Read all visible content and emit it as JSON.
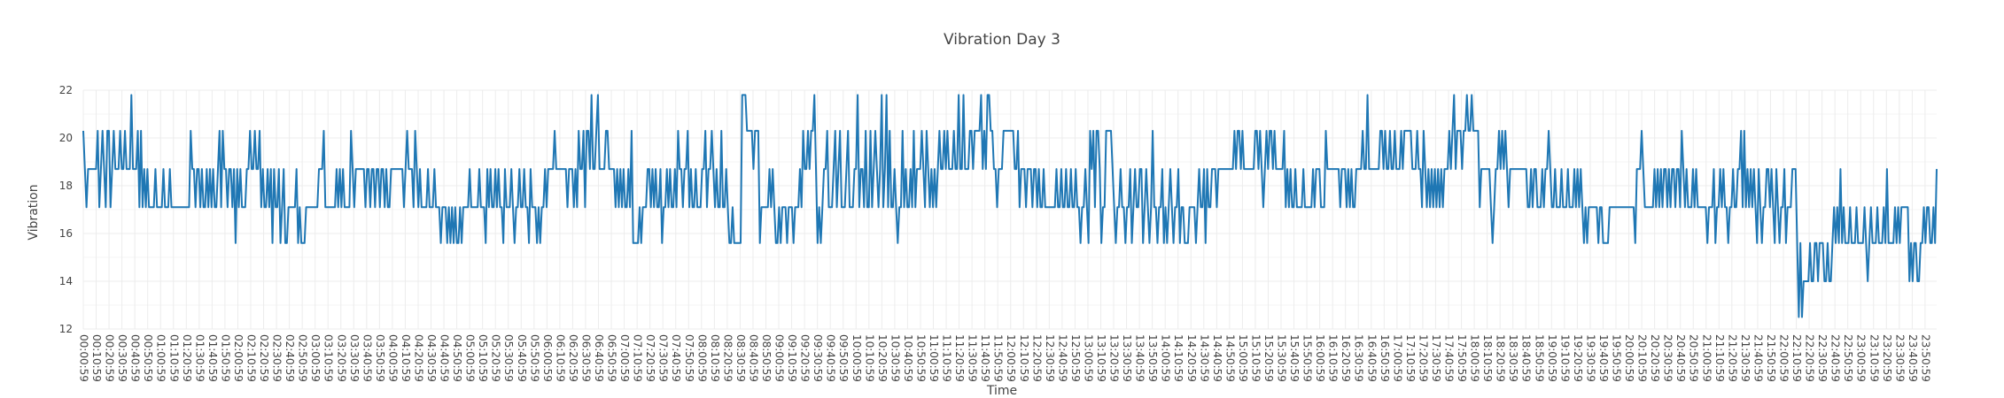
{
  "chart_data": {
    "type": "line",
    "title": "Vibration Day 3",
    "xlabel": "Time",
    "ylabel": "Vibration",
    "ylim": [
      12,
      22
    ],
    "yticks": [
      12,
      14,
      16,
      18,
      20,
      22
    ],
    "grid": true,
    "legend": "none",
    "series": [
      {
        "color": "#1f77b4"
      }
    ],
    "x_start": "00:00:59",
    "x_step_minutes": 1,
    "x_tick_every_minutes": 10,
    "x": [],
    "xtick_labels": [
      "00:00:59",
      "00:10:59",
      "00:20:59",
      "00:30:59",
      "00:40:59",
      "00:50:59",
      "01:00:59",
      "01:10:59",
      "01:20:59",
      "01:30:59",
      "01:40:59",
      "01:50:59",
      "02:00:59",
      "02:10:59",
      "02:20:59",
      "02:30:59",
      "02:40:59",
      "02:50:59",
      "03:00:59",
      "03:10:59",
      "03:20:59",
      "03:30:59",
      "03:40:59",
      "03:50:59",
      "04:00:59",
      "04:10:59",
      "04:20:59",
      "04:30:59",
      "04:40:59",
      "04:50:59",
      "05:00:59",
      "05:10:59",
      "05:20:59",
      "05:30:59",
      "05:40:59",
      "05:50:59",
      "06:00:59",
      "06:10:59",
      "06:20:59",
      "06:30:59",
      "06:40:59",
      "06:50:59",
      "07:00:59",
      "07:10:59",
      "07:20:59",
      "07:30:59",
      "07:40:59",
      "07:50:59",
      "08:00:59",
      "08:10:59",
      "08:20:59",
      "08:30:59",
      "08:40:59",
      "08:50:59",
      "09:00:59",
      "09:10:59",
      "09:20:59",
      "09:30:59",
      "09:40:59",
      "09:50:59",
      "10:00:59",
      "10:10:59",
      "10:20:59",
      "10:30:59",
      "10:40:59",
      "10:50:59",
      "11:00:59",
      "11:10:59",
      "11:20:59",
      "11:30:59",
      "11:40:59",
      "11:50:59",
      "12:00:59",
      "12:10:59",
      "12:20:59",
      "12:30:59",
      "12:40:59",
      "12:50:59",
      "13:00:59",
      "13:10:59",
      "13:20:59",
      "13:30:59",
      "13:40:59",
      "13:50:59",
      "14:00:59",
      "14:10:59",
      "14:20:59",
      "14:30:59",
      "14:40:59",
      "14:50:59",
      "15:00:59",
      "15:10:59",
      "15:20:59",
      "15:30:59",
      "15:40:59",
      "15:50:59",
      "16:00:59",
      "16:10:59",
      "16:20:59",
      "16:30:59",
      "16:40:59",
      "16:50:59",
      "17:00:59",
      "17:10:59",
      "17:20:59",
      "17:30:59",
      "17:40:59",
      "17:50:59",
      "18:00:59",
      "18:10:59",
      "18:20:59",
      "18:30:59",
      "18:40:59",
      "18:50:59",
      "19:00:59",
      "19:10:59",
      "19:20:59",
      "19:30:59",
      "19:40:59",
      "19:50:59",
      "20:00:59",
      "20:10:59",
      "20:20:59",
      "20:30:59",
      "20:40:59",
      "20:50:59",
      "21:00:59",
      "21:10:59",
      "21:20:59",
      "21:30:59",
      "21:40:59",
      "21:50:59",
      "22:00:59",
      "22:10:59",
      "22:20:59",
      "22:30:59",
      "22:40:59",
      "22:50:59",
      "23:00:59",
      "23:10:59",
      "23:20:59",
      "23:30:59",
      "23:40:59",
      "23:50:59"
    ],
    "y": [
      20.3,
      18.7,
      17.1,
      18.7,
      18.7,
      18.7,
      18.7,
      18.7,
      18.7,
      20.3,
      17.1,
      18.7,
      20.3,
      18.7,
      17.1,
      20.3,
      20.3,
      17.1,
      18.7,
      20.3,
      18.7,
      18.7,
      18.7,
      20.3,
      18.7,
      18.7,
      20.3,
      18.7,
      18.7,
      18.7,
      21.8,
      18.7,
      18.7,
      18.7,
      20.3,
      17.1,
      20.3,
      17.1,
      18.7,
      17.1,
      18.7,
      17.1,
      17.1,
      17.1,
      17.1,
      18.7,
      17.1,
      17.1,
      17.1,
      17.1,
      18.7,
      17.1,
      17.1,
      17.1,
      18.7,
      17.1,
      17.1,
      17.1,
      17.1,
      17.1,
      17.1,
      17.1,
      17.1,
      17.1,
      17.1,
      17.1,
      17.1,
      20.3,
      18.7,
      18.7,
      17.1,
      18.7,
      18.7,
      17.1,
      18.7,
      17.1,
      17.1,
      18.7,
      17.1,
      18.7,
      17.1,
      18.7,
      17.1,
      17.1,
      18.7,
      20.3,
      17.1,
      20.3,
      18.7,
      18.7,
      17.1,
      18.7,
      18.7,
      17.1,
      18.7,
      15.6,
      18.7,
      17.1,
      18.7,
      17.1,
      17.1,
      17.1,
      18.7,
      18.7,
      20.3,
      18.7,
      18.7,
      20.3,
      18.7,
      18.7,
      20.3,
      17.1,
      18.7,
      17.1,
      17.1,
      18.7,
      17.1,
      18.7,
      15.6,
      18.7,
      17.1,
      17.1,
      18.7,
      15.6,
      17.1,
      18.7,
      15.6,
      15.6,
      17.1,
      17.1,
      17.1,
      17.1,
      17.1,
      18.7,
      15.6,
      17.1,
      15.6,
      15.6,
      15.6,
      17.1,
      17.1,
      17.1,
      17.1,
      17.1,
      17.1,
      17.1,
      17.1,
      18.7,
      18.7,
      18.7,
      20.3,
      17.1,
      17.1,
      17.1,
      17.1,
      17.1,
      17.1,
      17.1,
      18.7,
      17.1,
      18.7,
      17.1,
      18.7,
      17.1,
      17.1,
      17.1,
      17.1,
      20.3,
      18.7,
      17.1,
      18.7,
      18.7,
      18.7,
      18.7,
      18.7,
      18.7,
      17.1,
      18.7,
      18.7,
      17.1,
      18.7,
      18.7,
      17.1,
      18.7,
      18.7,
      17.1,
      18.7,
      18.7,
      17.1,
      18.7,
      17.1,
      17.1,
      18.7,
      18.7,
      18.7,
      18.7,
      18.7,
      18.7,
      18.7,
      18.7,
      17.1,
      18.7,
      20.3,
      18.7,
      18.7,
      18.7,
      17.1,
      20.3,
      18.7,
      17.1,
      18.7,
      17.1,
      17.1,
      17.1,
      17.1,
      18.7,
      17.1,
      17.1,
      17.1,
      18.7,
      17.1,
      17.1,
      17.1,
      15.6,
      17.1,
      17.1,
      17.1,
      15.6,
      17.1,
      15.6,
      17.1,
      15.6,
      17.1,
      15.6,
      15.6,
      17.1,
      15.6,
      17.1,
      17.1,
      17.1,
      17.1,
      18.7,
      17.1,
      17.1,
      17.1,
      17.1,
      17.1,
      18.7,
      17.1,
      17.1,
      17.1,
      15.6,
      18.7,
      17.1,
      18.7,
      17.1,
      17.1,
      18.7,
      17.1,
      18.7,
      17.1,
      17.1,
      15.6,
      18.7,
      17.1,
      17.1,
      17.1,
      18.7,
      17.1,
      15.6,
      17.1,
      17.1,
      18.7,
      17.1,
      17.1,
      18.7,
      17.1,
      17.1,
      15.6,
      18.7,
      17.1,
      17.1,
      17.1,
      15.6,
      17.1,
      15.6,
      17.1,
      17.1,
      18.7,
      17.1,
      18.7,
      18.7,
      18.7,
      18.7,
      20.3,
      18.7,
      18.7,
      18.7,
      18.7,
      18.7,
      18.7,
      18.7,
      17.1,
      18.7,
      18.7,
      18.7,
      17.1,
      18.7,
      17.1,
      20.3,
      18.7,
      18.7,
      20.3,
      17.1,
      20.3,
      20.3,
      18.7,
      21.8,
      18.7,
      18.7,
      20.3,
      21.8,
      18.7,
      18.7,
      18.7,
      18.7,
      20.3,
      20.3,
      18.7,
      18.7,
      18.7,
      18.7,
      17.1,
      18.7,
      17.1,
      18.7,
      17.1,
      18.7,
      17.1,
      17.1,
      18.7,
      17.1,
      20.3,
      15.6,
      15.6,
      15.6,
      15.6,
      17.1,
      15.6,
      17.1,
      17.1,
      17.1,
      18.7,
      18.7,
      17.1,
      18.7,
      17.1,
      18.7,
      17.1,
      17.1,
      18.7,
      15.6,
      17.1,
      17.1,
      18.7,
      17.1,
      18.7,
      17.1,
      17.1,
      18.7,
      17.1,
      20.3,
      18.7,
      18.7,
      17.1,
      18.7,
      18.7,
      20.3,
      17.1,
      18.7,
      17.1,
      17.1,
      18.7,
      17.1,
      17.1,
      17.1,
      18.7,
      18.7,
      20.3,
      17.1,
      18.7,
      18.7,
      20.3,
      18.7,
      17.1,
      18.7,
      17.1,
      17.1,
      20.3,
      17.1,
      17.1,
      18.7,
      17.1,
      15.6,
      15.6,
      17.1,
      15.6,
      15.6,
      15.6,
      15.6,
      15.6,
      21.8,
      21.8,
      21.8,
      20.3,
      20.3,
      20.3,
      20.3,
      18.7,
      20.3,
      20.3,
      20.3,
      15.6,
      17.1,
      17.1,
      17.1,
      17.1,
      17.1,
      18.7,
      17.1,
      18.7,
      17.1,
      15.6,
      15.6,
      17.1,
      15.6,
      17.1,
      17.1,
      17.1,
      15.6,
      17.1,
      17.1,
      17.1,
      15.6,
      17.1,
      17.1,
      17.1,
      18.7,
      17.1,
      20.3,
      18.7,
      18.7,
      20.3,
      18.7,
      20.3,
      20.3,
      21.8,
      18.7,
      15.6,
      17.1,
      15.6,
      17.1,
      18.7,
      18.7,
      20.3,
      17.1,
      17.1,
      17.1,
      18.7,
      20.3,
      17.1,
      18.7,
      20.3,
      17.1,
      17.1,
      17.1,
      18.7,
      20.3,
      17.1,
      17.1,
      17.1,
      18.7,
      18.7,
      21.8,
      17.1,
      18.7,
      18.7,
      17.1,
      20.3,
      17.1,
      17.1,
      20.3,
      17.1,
      18.7,
      20.3,
      18.7,
      17.1,
      18.7,
      21.8,
      17.1,
      18.7,
      21.8,
      17.1,
      20.3,
      17.1,
      17.1,
      18.7,
      17.1,
      15.6,
      17.1,
      17.1,
      20.3,
      17.1,
      18.7,
      17.1,
      17.1,
      18.7,
      17.1,
      20.3,
      17.1,
      18.7,
      18.7,
      18.7,
      20.3,
      18.7,
      17.1,
      20.3,
      18.7,
      17.1,
      18.7,
      17.1,
      18.7,
      17.1,
      18.7,
      20.3,
      18.7,
      18.7,
      20.3,
      18.7,
      20.3,
      18.7,
      18.7,
      18.7,
      20.3,
      18.7,
      18.7,
      21.8,
      18.7,
      18.7,
      21.8,
      18.7,
      18.7,
      18.7,
      20.3,
      20.3,
      18.7,
      20.3,
      20.3,
      20.3,
      20.3,
      21.8,
      18.7,
      20.3,
      18.7,
      21.8,
      21.8,
      20.3,
      20.3,
      18.7,
      18.7,
      17.1,
      18.7,
      18.7,
      18.7,
      20.3,
      20.3,
      20.3,
      20.3,
      20.3,
      20.3,
      20.3,
      18.7,
      18.7,
      20.3,
      17.1,
      18.7,
      18.7,
      18.7,
      17.1,
      18.7,
      18.7,
      18.7,
      17.1,
      18.7,
      18.7,
      17.1,
      18.7,
      17.1,
      17.1,
      18.7,
      17.1,
      17.1,
      17.1,
      17.1,
      17.1,
      17.1,
      17.1,
      18.7,
      17.1,
      17.1,
      18.7,
      17.1,
      17.1,
      18.7,
      17.1,
      17.1,
      18.7,
      17.1,
      17.1,
      18.7,
      17.1,
      17.1,
      15.6,
      17.1,
      17.1,
      18.7,
      17.1,
      15.6,
      20.3,
      18.7,
      20.3,
      17.1,
      20.3,
      20.3,
      18.7,
      15.6,
      17.1,
      17.1,
      20.3,
      20.3,
      20.3,
      20.3,
      18.7,
      17.1,
      15.6,
      17.1,
      17.1,
      18.7,
      17.1,
      17.1,
      15.6,
      17.1,
      17.1,
      18.7,
      15.6,
      17.1,
      18.7,
      17.1,
      17.1,
      18.7,
      18.7,
      15.6,
      17.1,
      18.7,
      17.1,
      15.6,
      17.1,
      20.3,
      17.1,
      17.1,
      15.6,
      17.1,
      17.1,
      18.7,
      15.6,
      17.1,
      15.6,
      17.1,
      18.7,
      17.1,
      15.6,
      17.1,
      17.1,
      18.7,
      15.6,
      17.1,
      17.1,
      15.6,
      15.6,
      15.6,
      17.1,
      17.1,
      17.1,
      17.1,
      15.6,
      17.1,
      18.7,
      17.1,
      17.1,
      18.7,
      15.6,
      18.7,
      17.1,
      17.1,
      18.7,
      18.7,
      18.7,
      17.1,
      18.7,
      18.7,
      18.7,
      18.7,
      18.7,
      18.7,
      18.7,
      18.7,
      18.7,
      18.7,
      20.3,
      18.7,
      20.3,
      20.3,
      18.7,
      20.3,
      18.7,
      18.7,
      18.7,
      18.7,
      18.7,
      18.7,
      18.7,
      20.3,
      20.3,
      18.7,
      20.3,
      18.7,
      17.1,
      18.7,
      20.3,
      18.7,
      20.3,
      20.3,
      18.7,
      20.3,
      18.7,
      18.7,
      18.7,
      18.7,
      18.7,
      20.3,
      17.1,
      18.7,
      17.1,
      18.7,
      17.1,
      17.1,
      18.7,
      17.1,
      17.1,
      17.1,
      17.1,
      18.7,
      17.1,
      17.1,
      17.1,
      17.1,
      17.1,
      18.7,
      17.1,
      18.7,
      18.7,
      18.7,
      17.1,
      17.1,
      17.1,
      20.3,
      18.7,
      18.7,
      18.7,
      18.7,
      18.7,
      18.7,
      18.7,
      18.7,
      17.1,
      18.7,
      18.7,
      18.7,
      17.1,
      18.7,
      17.1,
      18.7,
      17.1,
      17.1,
      18.7,
      18.7,
      18.7,
      18.7,
      20.3,
      18.7,
      18.7,
      21.8,
      18.7,
      18.7,
      18.7,
      18.7,
      18.7,
      18.7,
      18.7,
      20.3,
      20.3,
      18.7,
      20.3,
      18.7,
      18.7,
      20.3,
      18.7,
      18.7,
      20.3,
      18.7,
      18.7,
      18.7,
      20.3,
      18.7,
      20.3,
      20.3,
      20.3,
      20.3,
      20.3,
      18.7,
      18.7,
      18.7,
      20.3,
      18.7,
      18.7,
      17.1,
      20.3,
      18.7,
      17.1,
      18.7,
      17.1,
      18.7,
      17.1,
      18.7,
      17.1,
      18.7,
      17.1,
      18.7,
      17.1,
      18.7,
      18.7,
      18.7,
      20.3,
      18.7,
      20.3,
      21.8,
      18.7,
      20.3,
      20.3,
      20.3,
      18.7,
      20.3,
      20.3,
      21.8,
      20.3,
      20.3,
      21.8,
      20.3,
      20.3,
      20.3,
      20.3,
      17.1,
      18.7,
      18.7,
      18.7,
      18.7,
      18.7,
      18.7,
      17.1,
      15.6,
      17.1,
      18.7,
      18.7,
      20.3,
      18.7,
      20.3,
      18.7,
      20.3,
      18.7,
      17.1,
      18.7,
      18.7,
      18.7,
      18.7,
      18.7,
      18.7,
      18.7,
      18.7,
      18.7,
      18.7,
      18.7,
      17.1,
      17.1,
      18.7,
      17.1,
      18.7,
      18.7,
      17.1,
      17.1,
      17.1,
      18.7,
      17.1,
      18.7,
      18.7,
      20.3,
      18.7,
      17.1,
      17.1,
      18.7,
      17.1,
      17.1,
      17.1,
      18.7,
      17.1,
      17.1,
      17.1,
      18.7,
      17.1,
      17.1,
      17.1,
      18.7,
      17.1,
      18.7,
      17.1,
      18.7,
      17.1,
      15.6,
      17.1,
      15.6,
      17.1,
      17.1,
      17.1,
      17.1,
      17.1,
      17.1,
      15.6,
      17.1,
      17.1,
      15.6,
      15.6,
      15.6,
      15.6,
      17.1,
      17.1,
      17.1,
      17.1,
      17.1,
      17.1,
      17.1,
      17.1,
      17.1,
      17.1,
      17.1,
      17.1,
      17.1,
      17.1,
      17.1,
      17.1,
      15.6,
      18.7,
      18.7,
      18.7,
      20.3,
      18.7,
      17.1,
      17.1,
      17.1,
      17.1,
      17.1,
      17.1,
      18.7,
      17.1,
      18.7,
      17.1,
      18.7,
      17.1,
      18.7,
      18.7,
      17.1,
      18.7,
      17.1,
      18.7,
      18.7,
      17.1,
      18.7,
      18.7,
      17.1,
      20.3,
      18.7,
      17.1,
      18.7,
      17.1,
      17.1,
      17.1,
      18.7,
      17.1,
      18.7,
      17.1,
      17.1,
      17.1,
      17.1,
      17.1,
      17.1,
      15.6,
      17.1,
      17.1,
      17.1,
      18.7,
      15.6,
      17.1,
      17.1,
      18.7,
      17.1,
      18.7,
      17.1,
      17.1,
      15.6,
      17.1,
      17.1,
      18.7,
      17.1,
      17.1,
      18.7,
      18.7,
      20.3,
      17.1,
      20.3,
      17.1,
      18.7,
      17.1,
      18.7,
      17.1,
      18.7,
      17.1,
      15.6,
      18.7,
      17.1,
      15.6,
      17.1,
      17.1,
      18.7,
      18.7,
      17.1,
      18.7,
      17.1,
      15.6,
      18.7,
      17.1,
      15.6,
      17.1,
      17.1,
      18.7,
      15.6,
      17.1,
      17.1,
      17.1,
      18.7,
      18.7,
      18.7,
      15.6,
      12.5,
      15.6,
      12.5,
      14.0,
      14.0,
      14.0,
      14.0,
      15.6,
      14.0,
      14.0,
      15.6,
      15.6,
      14.0,
      15.6,
      15.6,
      15.6,
      14.0,
      14.0,
      15.6,
      14.0,
      14.0,
      15.6,
      17.1,
      15.6,
      17.1,
      15.6,
      18.7,
      15.6,
      17.1,
      15.6,
      15.6,
      15.6,
      17.1,
      15.6,
      15.6,
      15.6,
      17.1,
      15.6,
      15.6,
      15.6,
      15.6,
      17.1,
      15.6,
      14.0,
      15.6,
      17.1,
      15.6,
      15.6,
      15.6,
      17.1,
      15.6,
      15.6,
      15.6,
      17.1,
      15.6,
      18.7,
      15.6,
      15.6,
      15.6,
      15.6,
      17.1,
      15.6,
      17.1,
      15.6,
      17.1,
      17.1,
      17.1,
      17.1,
      17.1,
      14.0,
      15.6,
      14.0,
      15.6,
      15.6,
      14.0,
      14.0,
      15.6,
      15.6,
      17.1,
      15.6,
      17.1,
      17.1,
      15.6,
      15.6,
      17.1,
      15.6,
      18.7
    ]
  }
}
